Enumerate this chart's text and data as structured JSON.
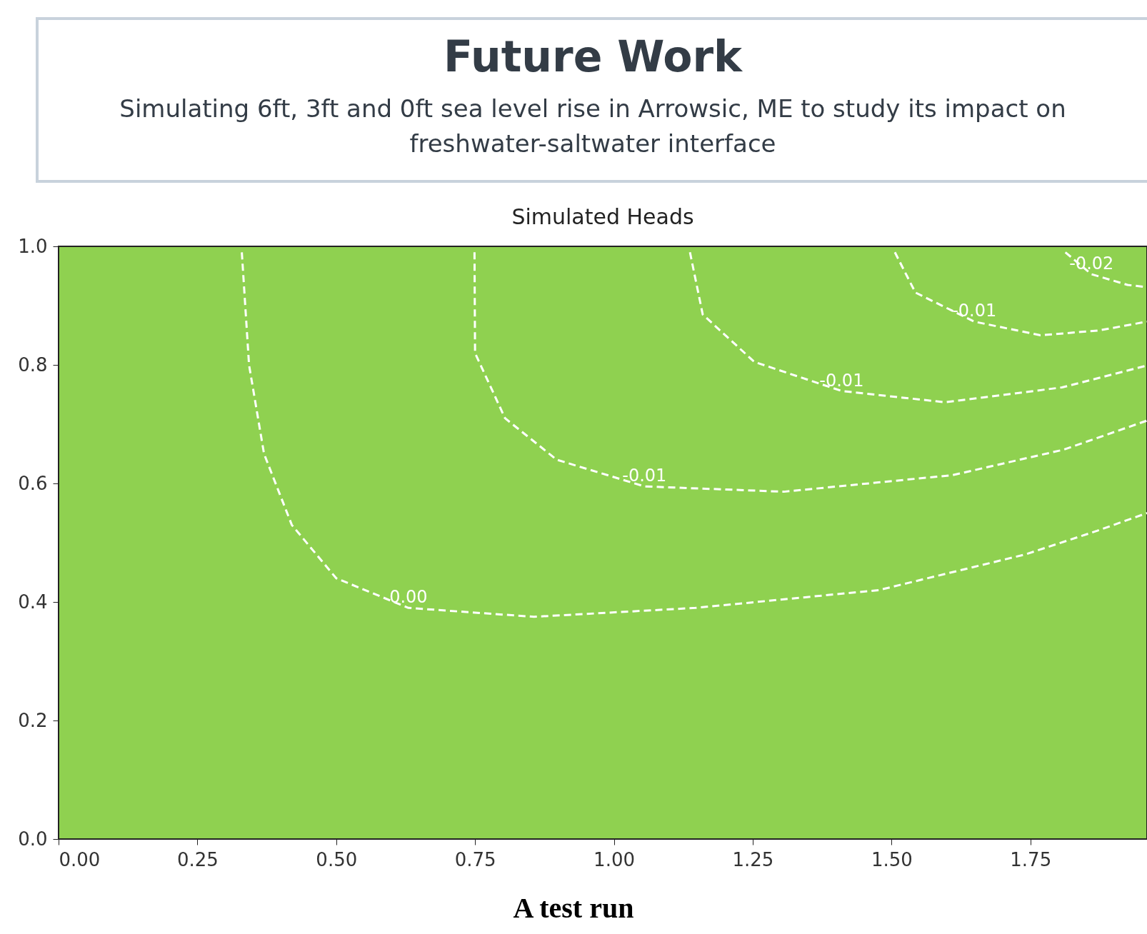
{
  "chart_data": {
    "type": "line",
    "title": "Future Work",
    "subtitle": "Simulating 6ft, 3ft and 0ft sea level rise in Arrowsic, ME to study its impact on freshwater-saltwater interface",
    "annotations": [
      "Simulated Heads",
      "A test run"
    ],
    "series": [
      {
        "name": "0.00",
        "color": "#ffffff",
        "x": [
          0.33,
          0.343,
          0.37,
          0.42,
          0.5,
          0.63,
          0.856,
          1.147,
          1.477,
          1.74,
          1.87,
          1.96
        ],
        "values": [
          0.99,
          0.8,
          0.65,
          0.53,
          0.44,
          0.39,
          0.375,
          0.39,
          0.42,
          0.48,
          0.52,
          0.55
        ]
      },
      {
        "name": "-0.01",
        "color": "#ffffff",
        "x": [
          0.749,
          0.75,
          0.804,
          0.897,
          1.055,
          1.306,
          1.61,
          1.81,
          1.96
        ],
        "values": [
          0.99,
          0.82,
          0.71,
          0.64,
          0.595,
          0.586,
          0.614,
          0.657,
          0.706
        ]
      },
      {
        "name": "-0.01",
        "color": "#ffffff",
        "x": [
          1.137,
          1.16,
          1.253,
          1.41,
          1.596,
          1.807,
          1.96
        ],
        "values": [
          0.99,
          0.885,
          0.805,
          0.756,
          0.737,
          0.762,
          0.799
        ]
      },
      {
        "name": "-0.01",
        "color": "#ffffff",
        "x": [
          1.506,
          1.543,
          1.649,
          1.768,
          1.873,
          1.96
        ],
        "values": [
          0.99,
          0.922,
          0.873,
          0.85,
          0.858,
          0.873
        ]
      },
      {
        "name": "-0.02",
        "color": "#ffffff",
        "x": [
          1.813,
          1.86,
          1.925,
          1.96
        ],
        "values": [
          0.99,
          0.953,
          0.935,
          0.931
        ]
      }
    ],
    "xlim": [
      0,
      1.96
    ],
    "ylim": [
      0,
      1
    ],
    "xticks": [
      {
        "value": 0,
        "label": "0.00"
      },
      {
        "value": 0.25,
        "label": "0.25"
      },
      {
        "value": 0.5,
        "label": "0.50"
      },
      {
        "value": 0.75,
        "label": "0.75"
      },
      {
        "value": 1,
        "label": "1.00"
      },
      {
        "value": 1.25,
        "label": "1.25"
      },
      {
        "value": 1.5,
        "label": "1.50"
      },
      {
        "value": 1.75,
        "label": "1.75"
      }
    ],
    "yticks": [
      {
        "value": 0,
        "label": "0.0"
      },
      {
        "value": 0.2,
        "label": "0.2"
      },
      {
        "value": 0.4,
        "label": "0.4"
      },
      {
        "value": 0.6,
        "label": "0.6"
      },
      {
        "value": 0.8,
        "label": "0.8"
      },
      {
        "value": 1,
        "label": "1.0"
      }
    ],
    "line_style": "dashed",
    "grid": false
  }
}
